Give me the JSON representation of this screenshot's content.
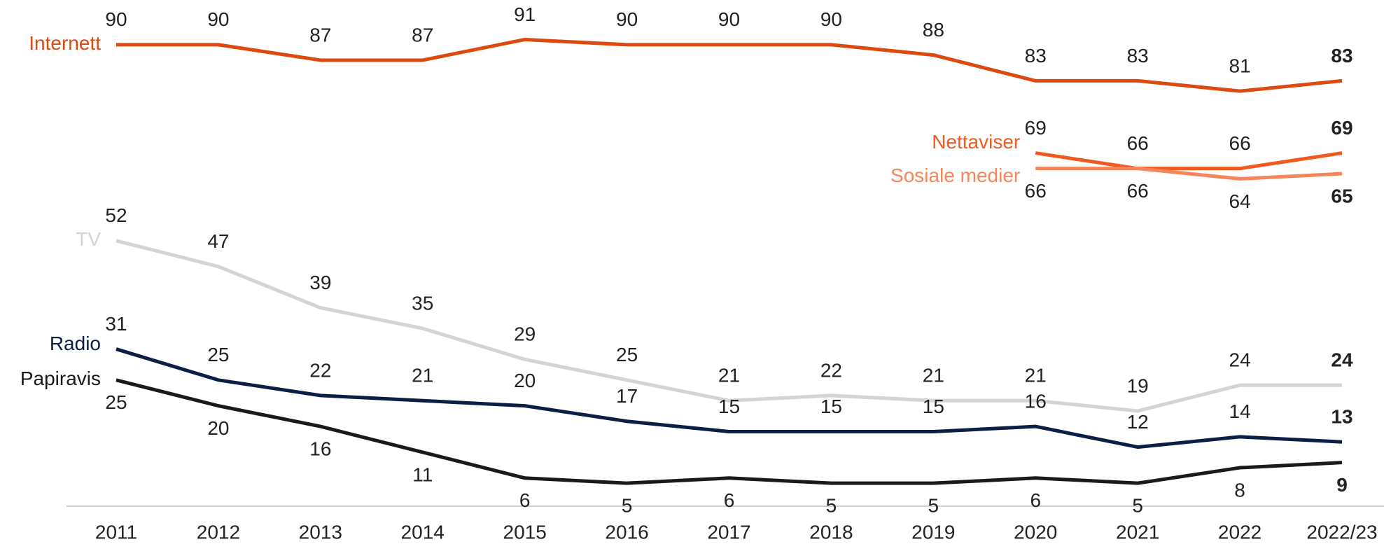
{
  "chart_data": {
    "type": "line",
    "categories": [
      "2011",
      "2012",
      "2013",
      "2014",
      "2015",
      "2016",
      "2017",
      "2018",
      "2019",
      "2020",
      "2021",
      "2022",
      "2022/23"
    ],
    "ylim": [
      0,
      95
    ],
    "series": [
      {
        "name": "Internett",
        "color": "#dc4a10",
        "values": [
          90,
          90,
          87,
          87,
          91,
          90,
          90,
          90,
          88,
          83,
          83,
          81,
          83
        ]
      },
      {
        "name": "Nettaviser",
        "color": "#f05a1e",
        "values": [
          null,
          null,
          null,
          null,
          null,
          null,
          null,
          null,
          null,
          69,
          66,
          66,
          69
        ]
      },
      {
        "name": "Sosiale medier",
        "color": "#f5855a",
        "values": [
          null,
          null,
          null,
          null,
          null,
          null,
          null,
          null,
          null,
          66,
          66,
          64,
          65
        ]
      },
      {
        "name": "TV",
        "color": "#d4d4d4",
        "values": [
          52,
          47,
          39,
          35,
          29,
          25,
          21,
          22,
          21,
          21,
          19,
          24,
          24
        ]
      },
      {
        "name": "Radio",
        "color": "#0b1f45",
        "values": [
          31,
          25,
          22,
          21,
          20,
          17,
          15,
          15,
          15,
          16,
          12,
          14,
          13
        ]
      },
      {
        "name": "Papiravis",
        "color": "#1a1a1a",
        "values": [
          25,
          20,
          16,
          11,
          6,
          5,
          6,
          5,
          5,
          6,
          5,
          8,
          9
        ]
      }
    ]
  }
}
